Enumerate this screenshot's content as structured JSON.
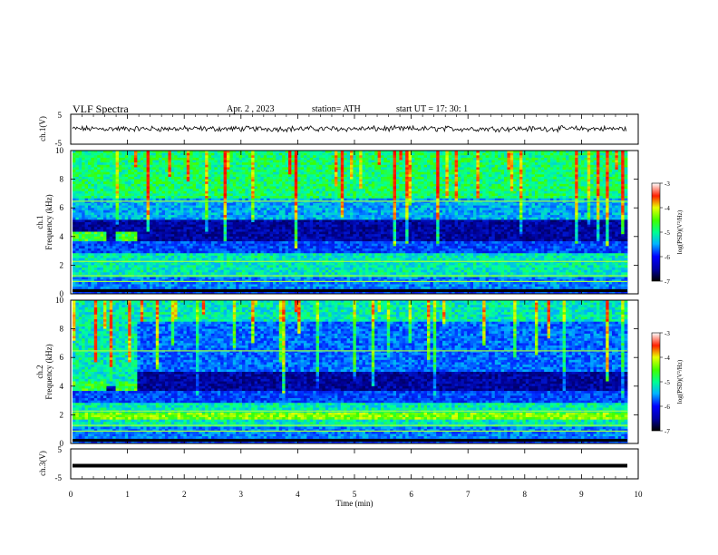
{
  "header": {
    "title": "VLF Spectra",
    "date": "Apr. 2  , 2023",
    "station": "station= ATH",
    "start": "start UT =   17: 30: 1"
  },
  "chart_data": [
    {
      "type": "line",
      "panel": "ch1-waveform",
      "ylabel": "ch.1(V)",
      "yticks": [
        "5",
        "-5"
      ],
      "ylim": [
        -5,
        5
      ],
      "xlim": [
        0,
        10
      ],
      "description_values": "noisy signal near 0 V, amplitude about ±0.5 V"
    },
    {
      "type": "heatmap",
      "panel": "ch1-spectrogram",
      "ylabel": "ch.1",
      "ylabel2": "Frequency (kHz)",
      "yticks": [
        "0",
        "2",
        "4",
        "6",
        "8",
        "10"
      ],
      "ylim": [
        0,
        10
      ],
      "xlim": [
        0,
        10
      ],
      "colorbar": {
        "label": "log(PSD)(V²/Hz)",
        "ticks": [
          "-3",
          "-4",
          "-5",
          "-6",
          "-7"
        ],
        "range": [
          -7,
          -3
        ]
      }
    },
    {
      "type": "heatmap",
      "panel": "ch2-spectrogram",
      "ylabel": "ch.2",
      "ylabel2": "Frequency (kHz)",
      "yticks": [
        "0",
        "2",
        "4",
        "6",
        "8",
        "10"
      ],
      "ylim": [
        0,
        10
      ],
      "xlim": [
        0,
        10
      ],
      "colorbar": {
        "label": "log(PSD)(V²/Hz)",
        "ticks": [
          "-3",
          "-4",
          "-5",
          "-6",
          "-7"
        ],
        "range": [
          -7,
          -3
        ]
      }
    },
    {
      "type": "line",
      "panel": "ch3-waveform",
      "ylabel": "ch.3(V)",
      "yticks": [
        "5",
        "-5"
      ],
      "ylim": [
        -5,
        5
      ],
      "xlim": [
        0,
        10
      ],
      "level": -1.7
    }
  ],
  "xaxis": {
    "label": "Time (min)",
    "ticks": [
      "0",
      "1",
      "2",
      "3",
      "4",
      "5",
      "6",
      "7",
      "8",
      "9",
      "10"
    ]
  }
}
